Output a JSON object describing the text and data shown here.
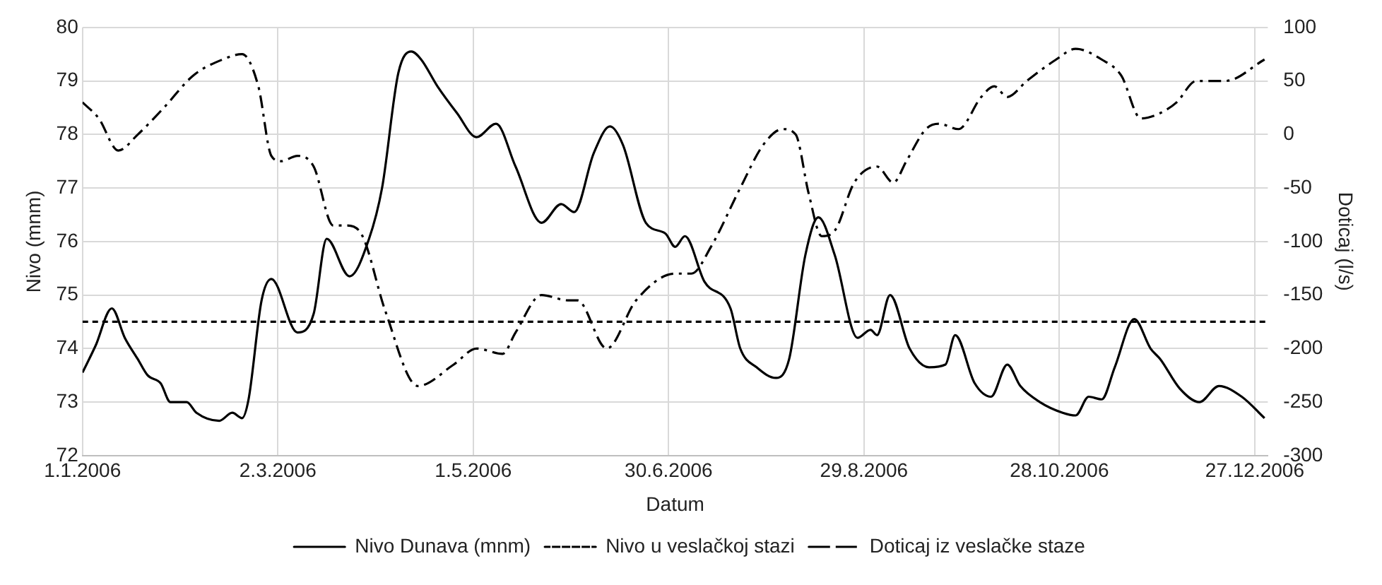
{
  "chart_data": {
    "type": "line",
    "xlabel": "Datum",
    "ylabel": "Nivo (mnm)",
    "y2label": "Doticaj (l/s)",
    "xlim": [
      "2006-01-01",
      "2006-12-31"
    ],
    "xticks": [
      {
        "value": "2006-01-01",
        "label": "1.1.2006"
      },
      {
        "value": "2006-03-02",
        "label": "2.3.2006"
      },
      {
        "value": "2006-05-01",
        "label": "1.5.2006"
      },
      {
        "value": "2006-06-30",
        "label": "30.6.2006"
      },
      {
        "value": "2006-08-29",
        "label": "29.8.2006"
      },
      {
        "value": "2006-10-28",
        "label": "28.10.2006"
      },
      {
        "value": "2006-12-27",
        "label": "27.12.2006"
      }
    ],
    "ylim": [
      72,
      80
    ],
    "yticks": [
      72,
      73,
      74,
      75,
      76,
      77,
      78,
      79,
      80
    ],
    "y2lim": [
      -300,
      100
    ],
    "y2ticks": [
      -300,
      -250,
      -200,
      -150,
      -100,
      -50,
      0,
      50,
      100
    ],
    "grid": true,
    "legend": "bottom",
    "marker": "none",
    "series": [
      {
        "name": "Nivo Dunava (mnm)",
        "color": "#000000",
        "line_style": "solid",
        "x": [
          "2006-01-01",
          "2006-01-05",
          "2006-01-10",
          "2006-01-14",
          "2006-01-18",
          "2006-01-21",
          "2006-01-25",
          "2006-01-28",
          "2006-02-02",
          "2006-02-05",
          "2006-02-12",
          "2006-02-16",
          "2006-02-19",
          "2006-02-21",
          "2006-02-25",
          "2006-02-28",
          "2006-03-08",
          "2006-03-13",
          "2006-03-17",
          "2006-03-24",
          "2006-03-30",
          "2006-04-03",
          "2006-04-08",
          "2006-04-12",
          "2006-04-15",
          "2006-04-20",
          "2006-04-26",
          "2006-05-02",
          "2006-05-08",
          "2006-05-14",
          "2006-05-22",
          "2006-05-28",
          "2006-06-01",
          "2006-06-07",
          "2006-06-12",
          "2006-06-16",
          "2006-06-23",
          "2006-06-29",
          "2006-07-02",
          "2006-07-05",
          "2006-07-11",
          "2006-07-19",
          "2006-07-22",
          "2006-07-27",
          "2006-08-02",
          "2006-08-06",
          "2006-08-11",
          "2006-08-15",
          "2006-08-20",
          "2006-08-27",
          "2006-08-31",
          "2006-09-02",
          "2006-09-06",
          "2006-09-12",
          "2006-09-18",
          "2006-09-23",
          "2006-09-26",
          "2006-10-02",
          "2006-10-07",
          "2006-10-12",
          "2006-10-16",
          "2006-10-22",
          "2006-10-29",
          "2006-11-02",
          "2006-11-06",
          "2006-11-10",
          "2006-11-14",
          "2006-11-20",
          "2006-11-25",
          "2006-11-28",
          "2006-12-04",
          "2006-12-10",
          "2006-12-16",
          "2006-12-23",
          "2006-12-30"
        ],
        "values": [
          73.55,
          74.05,
          74.75,
          74.2,
          73.8,
          73.5,
          73.35,
          73.0,
          73.0,
          72.8,
          72.65,
          72.8,
          72.7,
          73.05,
          74.9,
          75.3,
          74.3,
          74.65,
          76.05,
          75.35,
          76.05,
          77.0,
          79.15,
          79.55,
          79.4,
          78.9,
          78.4,
          77.95,
          78.2,
          77.4,
          76.35,
          76.7,
          76.55,
          77.65,
          78.15,
          77.8,
          76.35,
          76.15,
          75.9,
          76.1,
          75.25,
          74.75,
          74.0,
          73.65,
          73.45,
          73.8,
          75.75,
          76.45,
          75.75,
          74.2,
          74.35,
          74.25,
          75.0,
          74.0,
          73.65,
          73.7,
          74.25,
          73.35,
          73.1,
          73.7,
          73.3,
          73.0,
          72.8,
          72.75,
          73.1,
          73.05,
          73.65,
          74.55,
          74.0,
          73.8,
          73.25,
          73.0,
          73.3,
          73.1,
          72.7
        ]
      },
      {
        "name": "Nivo u veslačkoj stazi",
        "color": "#000000",
        "line_style": "dashed",
        "x": [
          "2006-01-01",
          "2006-12-31"
        ],
        "values": [
          74.5,
          74.5
        ]
      },
      {
        "name": "Doticaj iz veslačke staze",
        "color": "#000000",
        "line_style": "dashdot",
        "axis": "y2",
        "x": [
          "2006-01-01",
          "2006-01-06",
          "2006-01-12",
          "2006-01-18",
          "2006-01-26",
          "2006-02-04",
          "2006-02-13",
          "2006-02-19",
          "2006-02-24",
          "2006-02-28",
          "2006-03-03",
          "2006-03-08",
          "2006-03-13",
          "2006-03-19",
          "2006-03-23",
          "2006-03-28",
          "2006-04-04",
          "2006-04-14",
          "2006-04-25",
          "2006-05-02",
          "2006-05-10",
          "2006-05-14",
          "2006-05-22",
          "2006-05-30",
          "2006-06-02",
          "2006-06-11",
          "2006-06-20",
          "2006-07-02",
          "2006-07-07",
          "2006-07-13",
          "2006-07-22",
          "2006-07-29",
          "2006-08-04",
          "2006-08-08",
          "2006-08-12",
          "2006-08-16",
          "2006-08-20",
          "2006-08-26",
          "2006-09-02",
          "2006-09-07",
          "2006-09-11",
          "2006-09-17",
          "2006-09-21",
          "2006-09-27",
          "2006-10-04",
          "2006-10-08",
          "2006-10-12",
          "2006-10-18",
          "2006-10-27",
          "2006-11-02",
          "2006-11-10",
          "2006-11-16",
          "2006-11-22",
          "2006-11-28",
          "2006-12-03",
          "2006-12-09",
          "2006-12-18",
          "2006-12-30"
        ],
        "values": [
          30,
          15,
          -15,
          0,
          25,
          55,
          70,
          75,
          45,
          -20,
          -25,
          -20,
          -30,
          -85,
          -85,
          -95,
          -165,
          -235,
          -215,
          -200,
          -205,
          -185,
          -150,
          -155,
          -155,
          -200,
          -155,
          -130,
          -130,
          -105,
          -50,
          -10,
          5,
          0,
          -55,
          -95,
          -90,
          -45,
          -30,
          -45,
          -25,
          5,
          10,
          5,
          35,
          45,
          35,
          50,
          70,
          80,
          70,
          55,
          15,
          20,
          30,
          50,
          50,
          70
        ]
      }
    ]
  }
}
